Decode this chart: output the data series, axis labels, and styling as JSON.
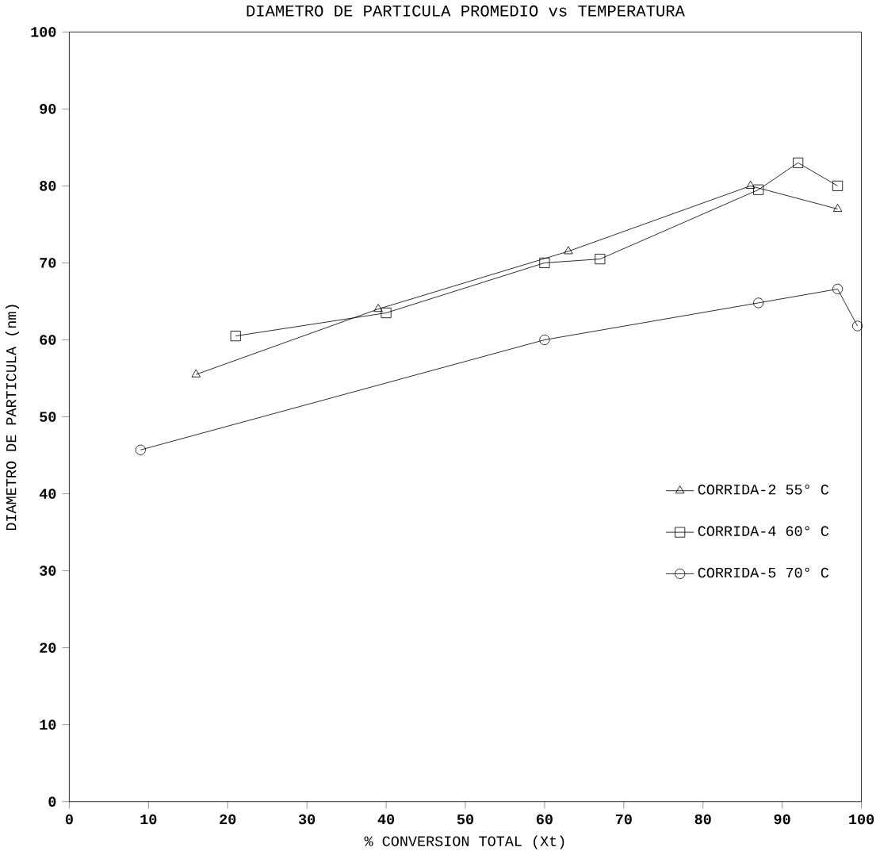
{
  "chart_data": {
    "type": "line",
    "title": "DIAMETRO DE PARTICULA PROMEDIO   vs   TEMPERATURA",
    "xlabel": "% CONVERSION TOTAL (Xt)",
    "ylabel": "DIAMETRO DE PARTICULA (nm)",
    "xlim": [
      0,
      100
    ],
    "ylim": [
      0,
      100
    ],
    "xticks": [
      0,
      10,
      20,
      30,
      40,
      50,
      60,
      70,
      80,
      90,
      100
    ],
    "yticks": [
      0,
      10,
      20,
      30,
      40,
      50,
      60,
      70,
      80,
      90,
      100
    ],
    "grid": false,
    "legend": "right",
    "line_style": "solid",
    "series": [
      {
        "name": "CORRIDA-2     55° C",
        "color": "#000000",
        "marker": "triangle",
        "x": [
          16,
          39,
          63,
          86,
          97
        ],
        "values": [
          55.5,
          64,
          71.5,
          80,
          77
        ]
      },
      {
        "name": "CORRIDA-4     60° C",
        "color": "#000000",
        "marker": "square",
        "x": [
          21,
          40,
          60,
          67,
          87,
          92,
          97
        ],
        "values": [
          60.5,
          63.5,
          70,
          70.5,
          79.5,
          83,
          80
        ]
      },
      {
        "name": "CORRIDA-5     70° C",
        "color": "#000000",
        "marker": "circle",
        "x": [
          9,
          60,
          87,
          97,
          99.5
        ],
        "values": [
          45.7,
          60,
          64.8,
          66.6,
          61.8
        ]
      }
    ]
  }
}
